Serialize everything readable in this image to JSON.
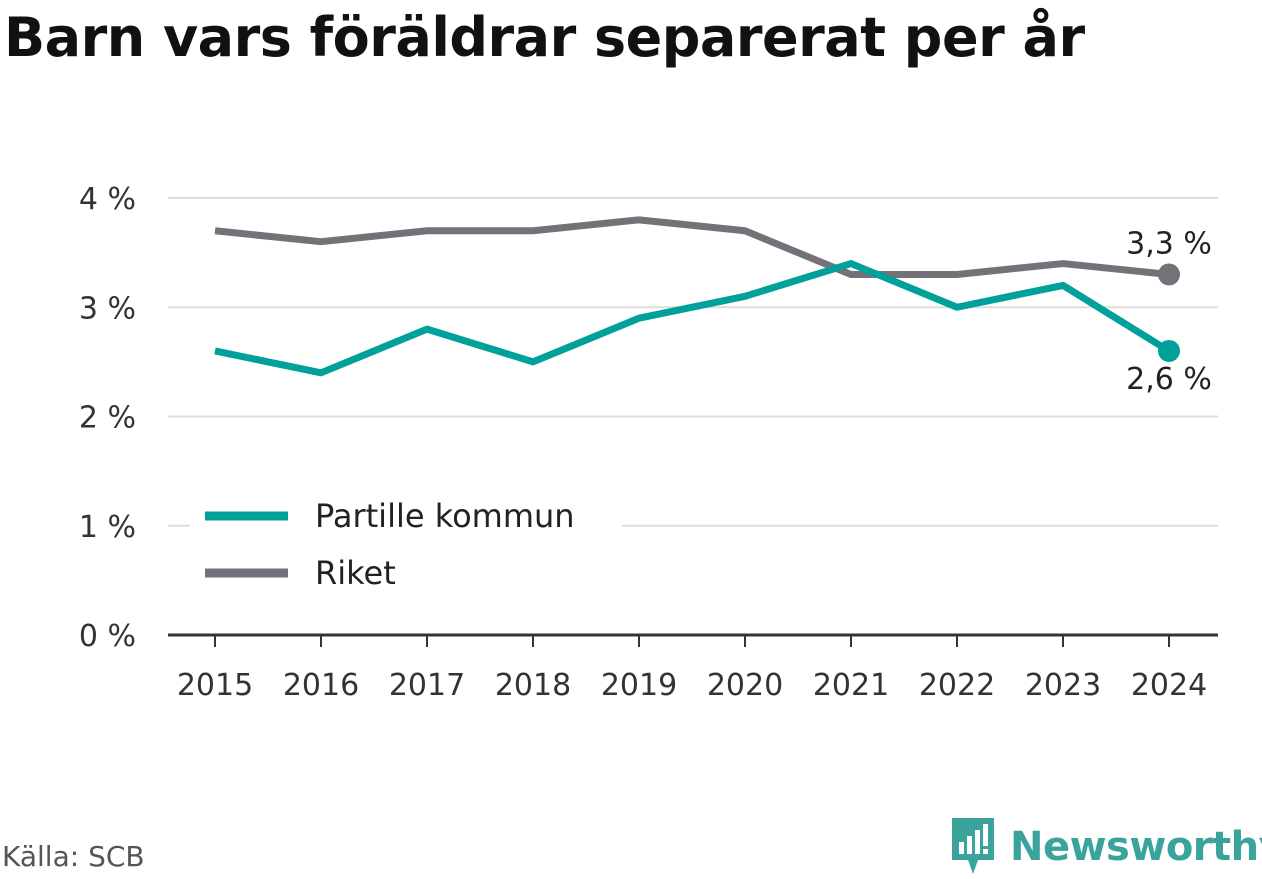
{
  "title": "Barn vars föräldrar separerat per år",
  "source": "Källa: SCB",
  "brand": "Newsworthy",
  "colors": {
    "partille": "#00a19a",
    "riket": "#737279",
    "grid": "#dddddd",
    "axis": "#333333",
    "brand": "#3aa49c"
  },
  "chart_data": {
    "type": "line",
    "title": "Barn vars föräldrar separerat per år",
    "xlabel": "",
    "ylabel": "",
    "x": [
      "2015",
      "2016",
      "2017",
      "2018",
      "2019",
      "2020",
      "2021",
      "2022",
      "2023",
      "2024"
    ],
    "ylim": [
      0,
      4
    ],
    "yticks": [
      0,
      1,
      2,
      3,
      4
    ],
    "ytick_labels": [
      "0 %",
      "1 %",
      "2 %",
      "3 %",
      "4 %"
    ],
    "grid": true,
    "legend": "lower-left",
    "series": [
      {
        "name": "Partille kommun",
        "color": "#00a19a",
        "values": [
          2.6,
          2.4,
          2.8,
          2.5,
          2.9,
          3.1,
          3.4,
          3.0,
          3.2,
          2.6
        ],
        "end_label": "2,6 %"
      },
      {
        "name": "Riket",
        "color": "#737279",
        "values": [
          3.7,
          3.6,
          3.7,
          3.7,
          3.8,
          3.7,
          3.3,
          3.3,
          3.4,
          3.3
        ],
        "end_label": "3,3 %"
      }
    ]
  }
}
